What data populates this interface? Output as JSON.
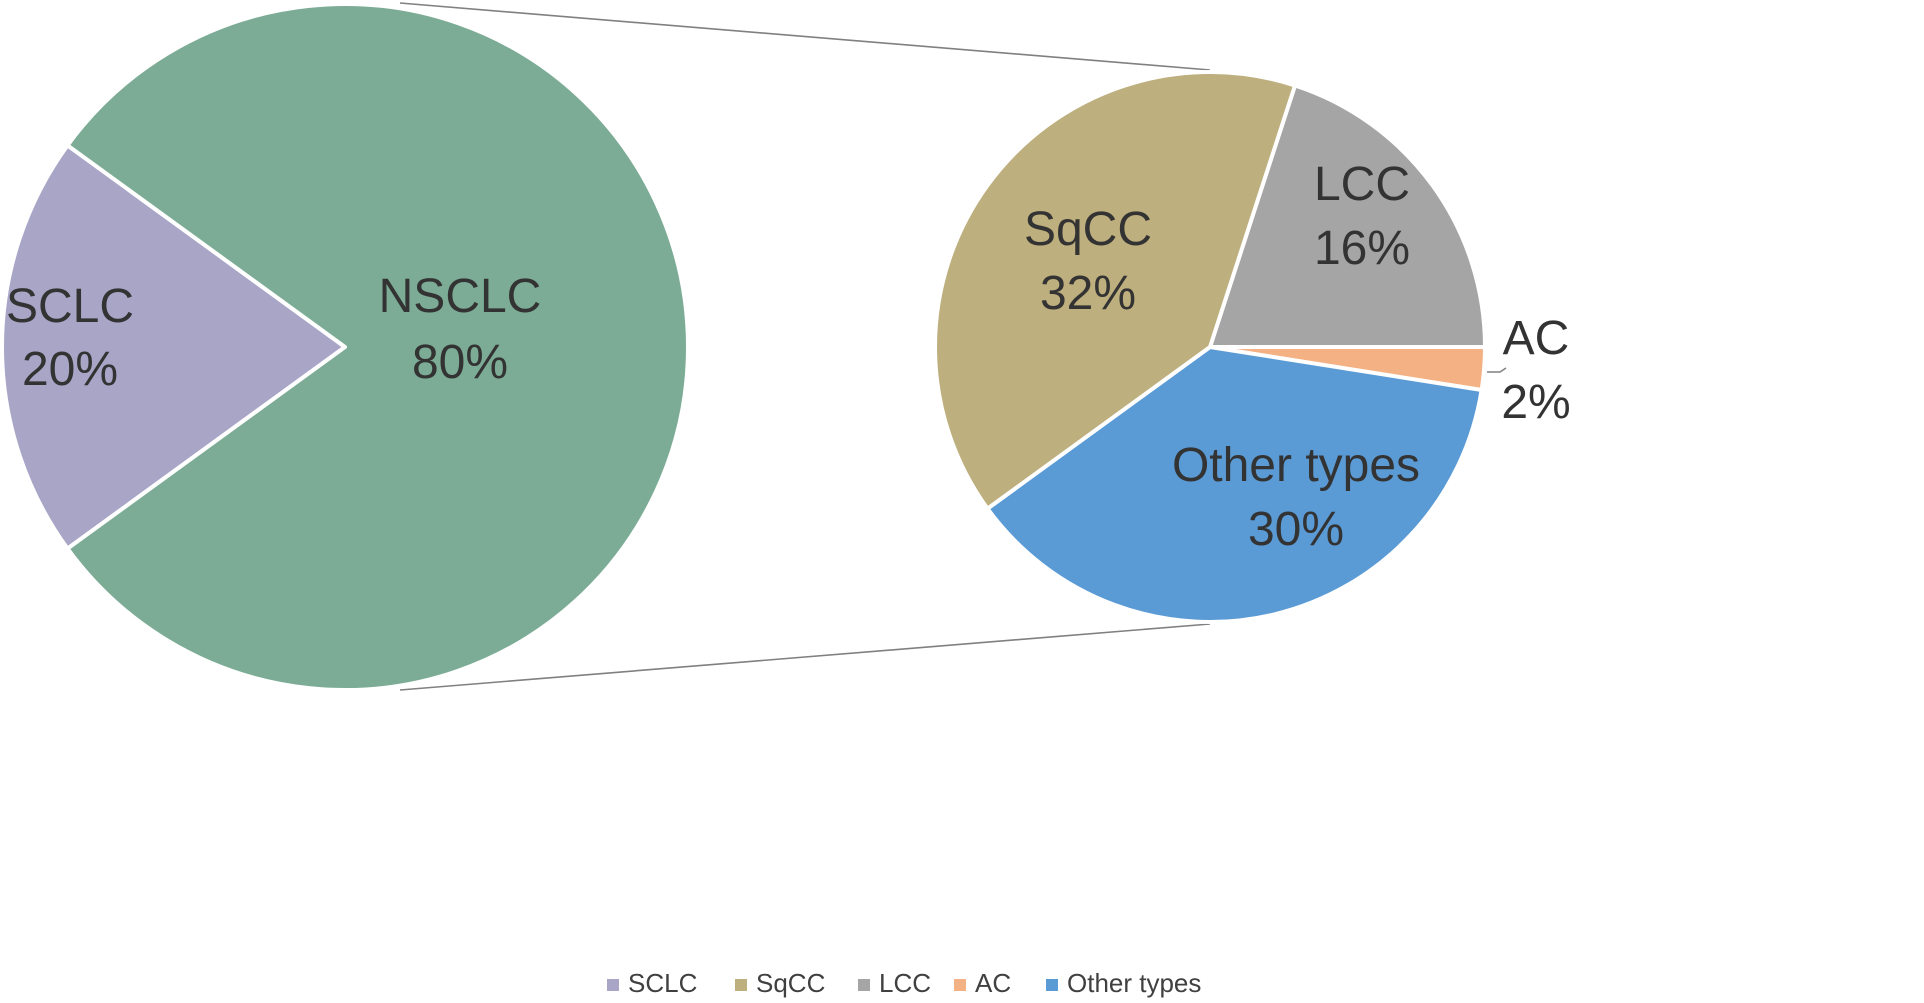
{
  "chart_data": {
    "type": "pie",
    "subtype": "pie-of-pie",
    "main_pie": {
      "slices": [
        {
          "label": "SCLC",
          "value": 20,
          "value_label": "20%",
          "color": "#A9A5C7"
        },
        {
          "label": "NSCLC",
          "value": 80,
          "value_label": "80%",
          "color": "#7CAC96"
        }
      ]
    },
    "sub_pie": {
      "breakdown_of": "NSCLC",
      "slices": [
        {
          "label": "LCC",
          "value": 16,
          "value_label": "16%",
          "color": "#A5A5A5"
        },
        {
          "label": "AC",
          "value": 2,
          "value_label": "2%",
          "color": "#F4B183"
        },
        {
          "label": "Other types",
          "value": 30,
          "value_label": "30%",
          "color": "#5B9BD5"
        },
        {
          "label": "SqCC",
          "value": 32,
          "value_label": "32%",
          "color": "#BEAF7E"
        }
      ]
    },
    "legend": {
      "position": "bottom",
      "entries": [
        {
          "label": "SCLC",
          "color": "#A9A5C7"
        },
        {
          "label": "SqCC",
          "color": "#BEAF7E"
        },
        {
          "label": "LCC",
          "color": "#A5A5A5"
        },
        {
          "label": "AC",
          "color": "#F4B183"
        },
        {
          "label": "Other types",
          "color": "#5B9BD5"
        }
      ]
    }
  }
}
